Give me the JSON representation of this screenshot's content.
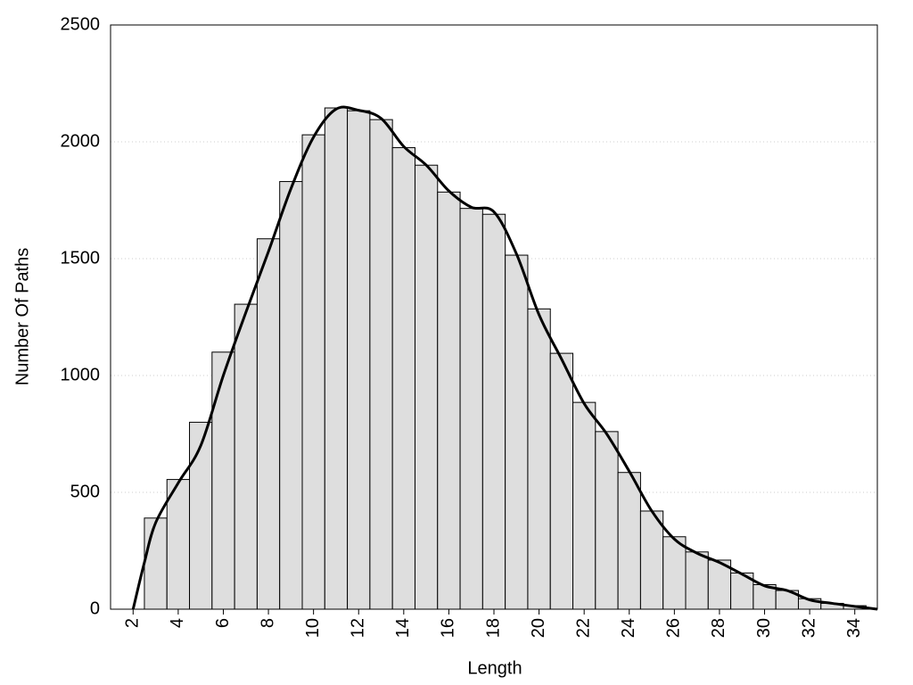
{
  "chart_data": {
    "type": "histogram",
    "xlabel": "Length",
    "ylabel": "Number Of Paths",
    "bins": [
      2.5,
      3.5,
      4.5,
      5.5,
      6.5,
      7.5,
      8.5,
      9.5,
      10.5,
      11.5,
      12.5,
      13.5,
      14.5,
      15.5,
      16.5,
      17.5,
      18.5,
      19.5,
      20.5,
      21.5,
      22.5,
      23.5,
      24.5,
      25.5,
      26.5,
      27.5,
      28.5,
      29.5,
      30.5,
      31.5,
      32.5,
      33.5,
      34.5
    ],
    "values": [
      390,
      555,
      800,
      1100,
      1305,
      1585,
      1830,
      2030,
      2145,
      2133,
      2095,
      1975,
      1900,
      1785,
      1715,
      1690,
      1515,
      1285,
      1095,
      885,
      760,
      585,
      420,
      310,
      245,
      210,
      155,
      105,
      80,
      45,
      25,
      15
    ],
    "color": "#dedede",
    "curve": {
      "color": "#000000",
      "x": [
        2,
        2.5,
        3,
        4,
        5,
        6,
        7,
        8,
        9,
        10,
        11,
        12,
        13,
        14,
        15,
        16,
        17,
        18,
        19,
        20,
        21,
        22,
        23,
        24,
        25,
        26,
        27,
        28,
        29,
        30,
        31,
        32,
        33,
        34,
        35
      ],
      "values": [
        0,
        200,
        370,
        540,
        700,
        1000,
        1270,
        1530,
        1800,
        2020,
        2140,
        2135,
        2100,
        1980,
        1900,
        1790,
        1720,
        1700,
        1520,
        1260,
        1070,
        880,
        750,
        590,
        420,
        300,
        240,
        200,
        150,
        100,
        80,
        40,
        25,
        12,
        0
      ]
    },
    "xlim": [
      1,
      35
    ],
    "xticks": [
      2,
      4,
      6,
      8,
      10,
      12,
      14,
      16,
      18,
      20,
      22,
      24,
      26,
      28,
      30,
      32,
      34
    ],
    "ylim": [
      0,
      2500
    ],
    "yticks": [
      0,
      500,
      1000,
      1500,
      2000,
      2500
    ],
    "grid": true
  }
}
